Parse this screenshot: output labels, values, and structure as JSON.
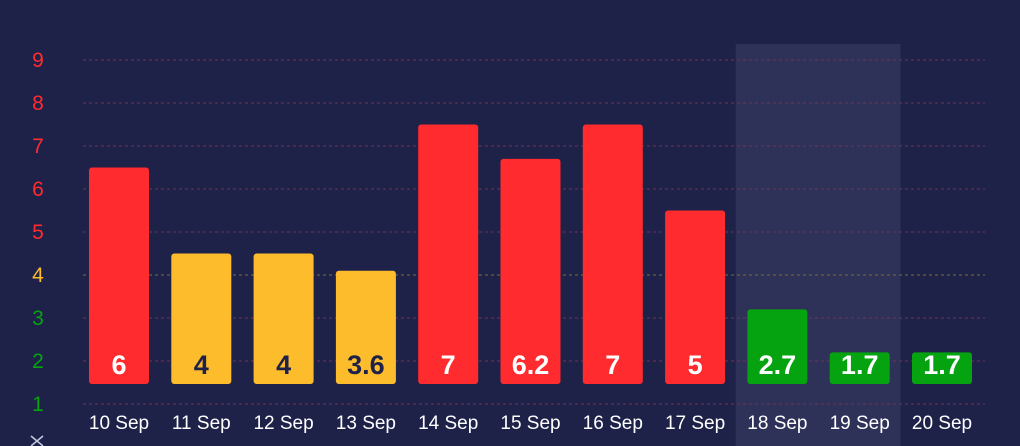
{
  "chart_data": {
    "type": "bar",
    "categories": [
      "10 Sep",
      "11 Sep",
      "12 Sep",
      "13 Sep",
      "14 Sep",
      "15 Sep",
      "16 Sep",
      "17 Sep",
      "18 Sep",
      "19 Sep",
      "20 Sep"
    ],
    "values": [
      6,
      4,
      4,
      3.6,
      7,
      6.2,
      7,
      5,
      2.7,
      1.7,
      1.7
    ],
    "value_labels": [
      "6",
      "4",
      "4",
      "3.6",
      "7",
      "6.2",
      "7",
      "5",
      "2.7",
      "1.7",
      "1.7"
    ],
    "ylim": [
      1,
      9
    ],
    "yticks": [
      1,
      2,
      3,
      4,
      5,
      6,
      7,
      8,
      9
    ],
    "grid": true,
    "highlighted_category": "18 Sep",
    "title": "",
    "xlabel": "",
    "ylabel": ""
  },
  "colors": {
    "background": "#1e2248",
    "red": "#ff2b2e",
    "yellow": "#fcbc2b",
    "green": "#04a30f",
    "grid_red": "#7a3050",
    "grid_yellow": "#7a7030",
    "highlight_band": "#2e3258",
    "label_dark": "#1e2248",
    "label_light": "#ffffff"
  },
  "icons": {
    "bottom_left": "close-x-icon"
  }
}
